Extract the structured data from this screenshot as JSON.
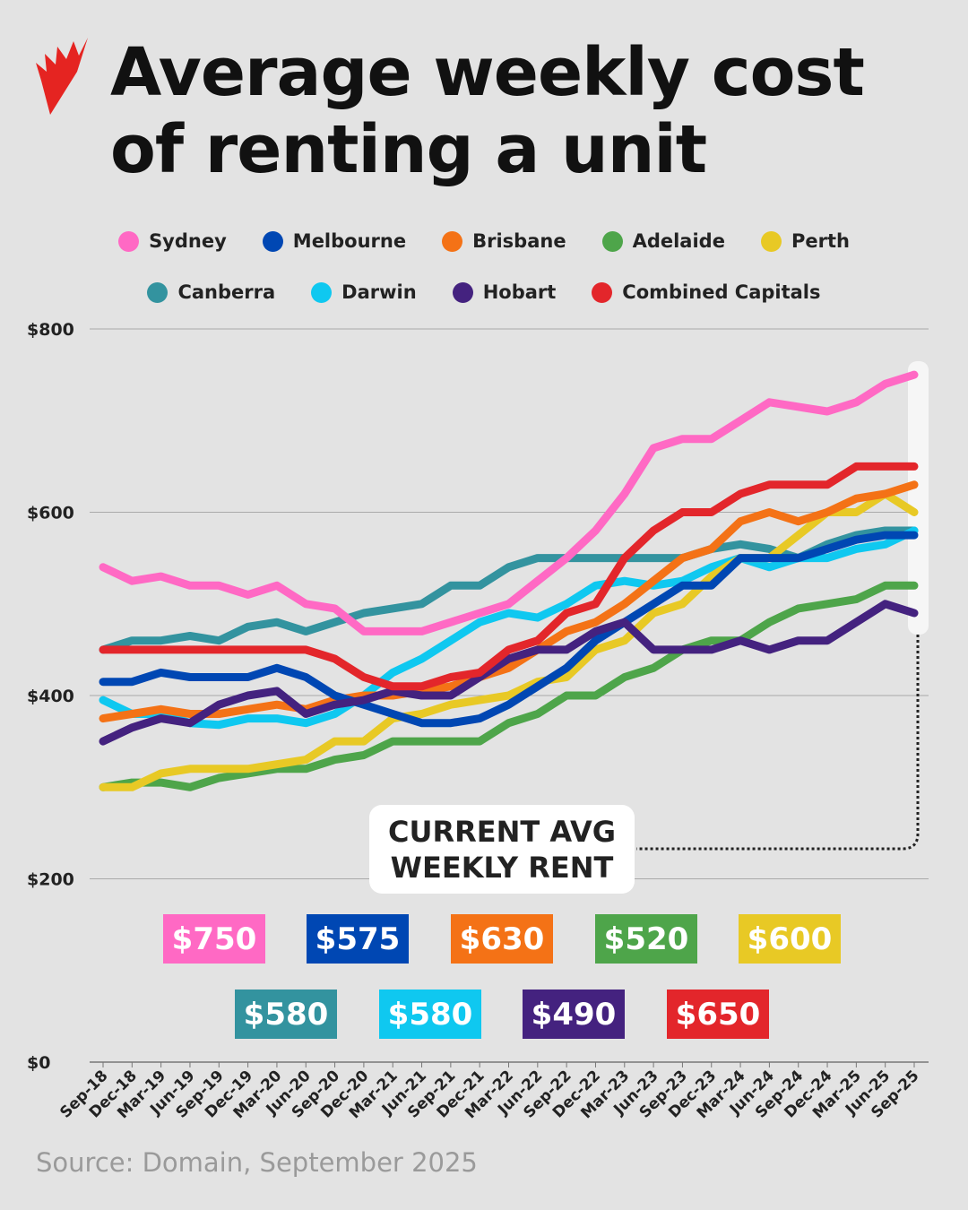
{
  "header": {
    "title_line1": "Average weekly cost",
    "title_line2": "of renting a unit",
    "logo": "sbs-logo",
    "brand_color": "#e52421"
  },
  "callout": {
    "line1": "CURRENT AVG",
    "line2": "WEEKLY RENT"
  },
  "source": "Source: Domain, September 2025",
  "chart_data": {
    "type": "line",
    "title": "Average weekly cost of renting a unit",
    "xlabel": "",
    "ylabel": "",
    "ylim": [
      0,
      800
    ],
    "yticks": [
      "$0",
      "$200",
      "$400",
      "$600",
      "$800"
    ],
    "ytick_values": [
      0,
      200,
      400,
      600,
      800
    ],
    "grid": true,
    "legend_placement": "top",
    "categories": [
      "Sep-18",
      "Dec-18",
      "Mar-19",
      "Jun-19",
      "Sep-19",
      "Dec-19",
      "Mar-20",
      "Jun-20",
      "Sep-20",
      "Dec-20",
      "Mar-21",
      "Jun-21",
      "Sep-21",
      "Dec-21",
      "Mar-22",
      "Jun-22",
      "Sep-22",
      "Dec-22",
      "Mar-23",
      "Jun-23",
      "Sep-23",
      "Dec-23",
      "Mar-24",
      "Jun-24",
      "Sep-24",
      "Dec-24",
      "Mar-25",
      "Jun-25",
      "Sep-25"
    ],
    "series": [
      {
        "name": "Sydney",
        "color": "#ff69c4",
        "current": "$750",
        "values": [
          540,
          525,
          530,
          520,
          520,
          510,
          520,
          500,
          495,
          470,
          470,
          470,
          480,
          490,
          500,
          525,
          550,
          580,
          620,
          670,
          680,
          680,
          700,
          720,
          715,
          710,
          720,
          740,
          750
        ]
      },
      {
        "name": "Melbourne",
        "color": "#0047b3",
        "current": "$575",
        "values": [
          415,
          415,
          425,
          420,
          420,
          420,
          430,
          420,
          400,
          390,
          380,
          370,
          370,
          375,
          390,
          410,
          430,
          460,
          480,
          500,
          520,
          520,
          550,
          550,
          550,
          560,
          570,
          575,
          575
        ]
      },
      {
        "name": "Brisbane",
        "color": "#f47216",
        "current": "$630",
        "values": [
          375,
          380,
          385,
          380,
          380,
          385,
          390,
          385,
          395,
          400,
          400,
          405,
          410,
          420,
          430,
          450,
          470,
          480,
          500,
          525,
          550,
          560,
          590,
          600,
          590,
          600,
          615,
          620,
          630
        ]
      },
      {
        "name": "Adelaide",
        "color": "#4ea54a",
        "current": "$520",
        "values": [
          300,
          305,
          305,
          300,
          310,
          315,
          320,
          320,
          330,
          335,
          350,
          350,
          350,
          350,
          370,
          380,
          400,
          400,
          420,
          430,
          450,
          460,
          460,
          480,
          495,
          500,
          505,
          520,
          520
        ]
      },
      {
        "name": "Perth",
        "color": "#e8c925",
        "current": "$600",
        "values": [
          300,
          300,
          315,
          320,
          320,
          320,
          325,
          330,
          350,
          350,
          375,
          380,
          390,
          395,
          400,
          415,
          420,
          450,
          460,
          490,
          500,
          530,
          550,
          550,
          575,
          600,
          600,
          620,
          600
        ]
      },
      {
        "name": "Canberra",
        "color": "#33939f",
        "current": "$580",
        "values": [
          450,
          460,
          460,
          465,
          460,
          475,
          480,
          470,
          480,
          490,
          495,
          500,
          520,
          520,
          540,
          550,
          550,
          550,
          550,
          550,
          550,
          560,
          565,
          560,
          550,
          565,
          575,
          580,
          580
        ]
      },
      {
        "name": "Darwin",
        "color": "#0fc8f0",
        "current": "$580",
        "values": [
          395,
          380,
          380,
          370,
          368,
          375,
          375,
          370,
          380,
          400,
          425,
          440,
          460,
          480,
          490,
          485,
          500,
          520,
          525,
          520,
          525,
          540,
          550,
          540,
          550,
          550,
          560,
          565,
          580
        ]
      },
      {
        "name": "Hobart",
        "color": "#44227f",
        "current": "$490",
        "values": [
          350,
          365,
          375,
          370,
          390,
          400,
          405,
          380,
          390,
          395,
          405,
          400,
          400,
          420,
          440,
          450,
          450,
          470,
          480,
          450,
          450,
          450,
          460,
          450,
          460,
          460,
          480,
          500,
          490
        ]
      },
      {
        "name": "Combined Capitals",
        "color": "#e3262b",
        "current": "$650",
        "values": [
          450,
          450,
          450,
          450,
          450,
          450,
          450,
          450,
          440,
          420,
          410,
          410,
          420,
          425,
          450,
          460,
          490,
          500,
          550,
          580,
          600,
          600,
          620,
          630,
          630,
          630,
          650,
          650,
          650
        ]
      }
    ]
  }
}
